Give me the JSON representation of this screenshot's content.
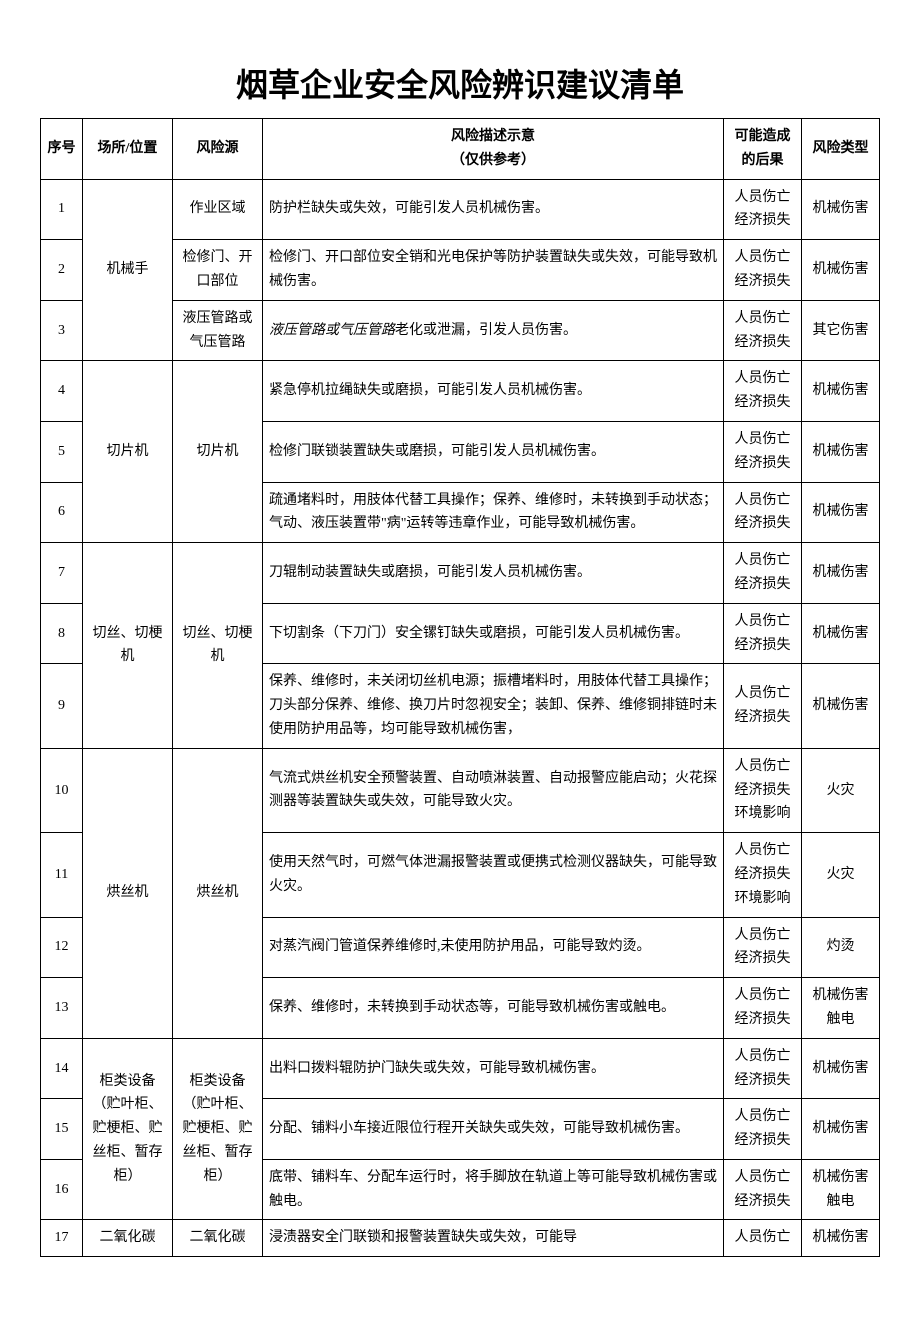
{
  "title": "烟草企业安全风险辨识建议清单",
  "columns": {
    "seq": "序号",
    "loc": "场所/位置",
    "src": "风险源",
    "desc_line1": "风险描述示意",
    "desc_line2": "（仅供参考）",
    "cons": "可能造成的后果",
    "type": "风险类型"
  },
  "groups": [
    {
      "loc": "机械手",
      "rows": [
        {
          "seq": "1",
          "src": "作业区域",
          "desc": "防护栏缺失或失效，可能引发人员机械伤害。",
          "cons": "人员伤亡 经济损失",
          "type": "机械伤害"
        },
        {
          "seq": "2",
          "src": "检修门、开口部位",
          "desc": "检修门、开口部位安全销和光电保护等防护装置缺失或失效，可能导致机械伤害。",
          "cons": "人员伤亡 经济损失",
          "type": "机械伤害"
        },
        {
          "seq": "3",
          "src": "液压管路或气压管路",
          "desc_italic_prefix": "液压管路或气压管路",
          "desc_rest": "老化或泄漏，引发人员伤害。",
          "cons": "人员伤亡 经济损失",
          "type": "其它伤害"
        }
      ]
    },
    {
      "loc": "切片机",
      "src_merged": "切片机",
      "rows": [
        {
          "seq": "4",
          "desc": "紧急停机拉绳缺失或磨损，可能引发人员机械伤害。",
          "cons": "人员伤亡 经济损失",
          "type": "机械伤害"
        },
        {
          "seq": "5",
          "desc": "检修门联锁装置缺失或磨损，可能引发人员机械伤害。",
          "cons": "人员伤亡 经济损失",
          "type": "机械伤害"
        },
        {
          "seq": "6",
          "desc": "疏通堵料时，用肢体代替工具操作；保养、维修时，未转换到手动状态；气动、液压装置带\"病\"运转等违章作业，可能导致机械伤害。",
          "cons": "人员伤亡 经济损失",
          "type": "机械伤害"
        }
      ]
    },
    {
      "loc": "切丝、切梗机",
      "src_merged": "切丝、切梗机",
      "rows": [
        {
          "seq": "7",
          "desc": "刀辊制动装置缺失或磨损，可能引发人员机械伤害。",
          "cons": "人员伤亡 经济损失",
          "type": "机械伤害"
        },
        {
          "seq": "8",
          "desc": "下切割条（下刀门）安全镙钉缺失或磨损，可能引发人员机械伤害。",
          "cons": "人员伤亡 经济损失",
          "type": "机械伤害"
        },
        {
          "seq": "9",
          "desc": "保养、维修时，未关闭切丝机电源；振槽堵料时，用肢体代替工具操作；刀头部分保养、维修、换刀片时忽视安全；装卸、保养、维修铜排链时未使用防护用品等，均可能导致机械伤害，",
          "cons": "人员伤亡 经济损失",
          "type": "机械伤害"
        }
      ]
    },
    {
      "loc": "烘丝机",
      "src_merged": "烘丝机",
      "rows": [
        {
          "seq": "10",
          "desc": "气流式烘丝机安全预警装置、自动喷淋装置、自动报警应能启动；火花探测器等装置缺失或失效，可能导致火灾。",
          "cons": "人员伤亡 经济损失 环境影响",
          "type": "火灾"
        },
        {
          "seq": "11",
          "desc": "使用天然气时，可燃气体泄漏报警装置或便携式检测仪器缺失，可能导致火灾。",
          "cons": "人员伤亡 经济损失 环境影响",
          "type": "火灾"
        },
        {
          "seq": "12",
          "desc": "对蒸汽阀门管道保养维修时,未使用防护用品，可能导致灼烫。",
          "cons": "人员伤亡 经济损失",
          "type": "灼烫"
        },
        {
          "seq": "13",
          "desc": "保养、维修时，未转换到手动状态等，可能导致机械伤害或触电。",
          "cons": "人员伤亡 经济损失",
          "type": "机械伤害 触电"
        }
      ]
    },
    {
      "loc": "柜类设备（贮叶柜、贮梗柜、贮丝柜、暂存柜）",
      "src_merged": "柜类设备（贮叶柜、贮梗柜、贮丝柜、暂存柜）",
      "rows": [
        {
          "seq": "14",
          "desc": "出料口拨料辊防护门缺失或失效，可能导致机械伤害。",
          "cons": "人员伤亡 经济损失",
          "type": "机械伤害"
        },
        {
          "seq": "15",
          "desc": "分配、铺料小车接近限位行程开关缺失或失效，可能导致机械伤害。",
          "cons": "人员伤亡 经济损失",
          "type": "机械伤害"
        },
        {
          "seq": "16",
          "desc": "底带、铺料车、分配车运行时，将手脚放在轨道上等可能导致机械伤害或触电。",
          "cons": "人员伤亡 经济损失",
          "type": "机械伤害 触电"
        }
      ]
    },
    {
      "loc": "二氧化碳",
      "src_merged": "二氧化碳",
      "rows": [
        {
          "seq": "17",
          "desc": "浸渍器安全门联锁和报警装置缺失或失效，可能导",
          "cons": "人员伤亡",
          "type": "机械伤害"
        }
      ]
    }
  ]
}
